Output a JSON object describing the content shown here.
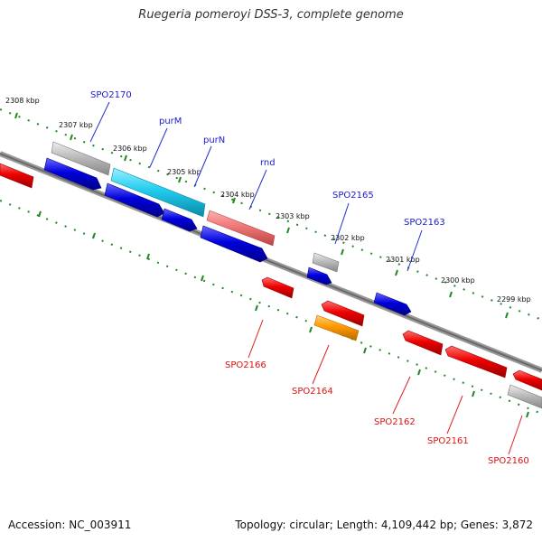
{
  "header": {
    "title": "Ruegeria pomeroyi DSS-3, complete genome"
  },
  "footer": {
    "accession": "Accession: NC_003911",
    "topology": "Topology: circular; Length: 4,109,442 bp; Genes: 3,872"
  },
  "colors": {
    "forward": "#0000dd",
    "reverse": "#ee0000",
    "rrna": "#22ccee",
    "trna": "#ee7777",
    "other": "#aaaaaa",
    "orange": "#ff9900",
    "ruler": "#228822",
    "backbone": "#777777",
    "label_top": "#1a1acc",
    "label_bottom": "#dd1111"
  },
  "kbp_labels": [
    "2308 kbp",
    "2307 kbp",
    "2306 kbp",
    "2305 kbp",
    "2304 kbp",
    "2303 kbp",
    "2302 kbp",
    "2301 kbp",
    "2300 kbp",
    "2299 kbp"
  ],
  "gene_labels_top": [
    "SPO2170",
    "purM",
    "purN",
    "rnd",
    "SPO2165",
    "SPO2163"
  ],
  "gene_labels_bottom": [
    "SPO2166",
    "SPO2164",
    "SPO2162",
    "SPO2161",
    "SPO2160"
  ]
}
